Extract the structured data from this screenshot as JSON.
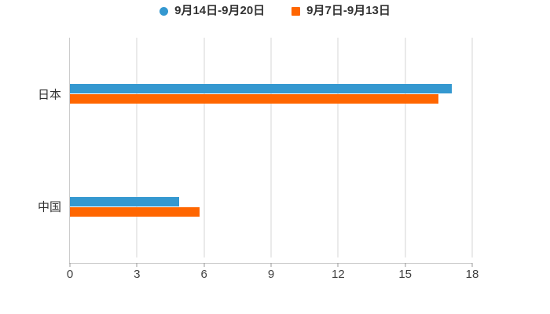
{
  "chart_data": {
    "type": "bar",
    "orientation": "horizontal",
    "title": "",
    "categories": [
      "日本",
      "中国"
    ],
    "series": [
      {
        "name": "9月14日-9月20日",
        "color": "#3498d0",
        "marker": "circle",
        "values": [
          17.1,
          4.9
        ]
      },
      {
        "name": "9月7日-9月13日",
        "color": "#ff6600",
        "marker": "square",
        "values": [
          16.5,
          5.8
        ]
      }
    ],
    "xlabel": "",
    "ylabel": "",
    "xlim": [
      0,
      18
    ],
    "xticks": [
      0,
      3,
      6,
      9,
      12,
      15,
      18
    ],
    "grid": true,
    "legend_position": "top",
    "colors": {
      "gridline": "#d4d4d4",
      "axis_line": "#cccccc",
      "tick_mark": "#999999",
      "tick_label_text": "#404040",
      "category_label_text": "#333333",
      "legend_text": "#333333",
      "background": "#ffffff"
    }
  }
}
